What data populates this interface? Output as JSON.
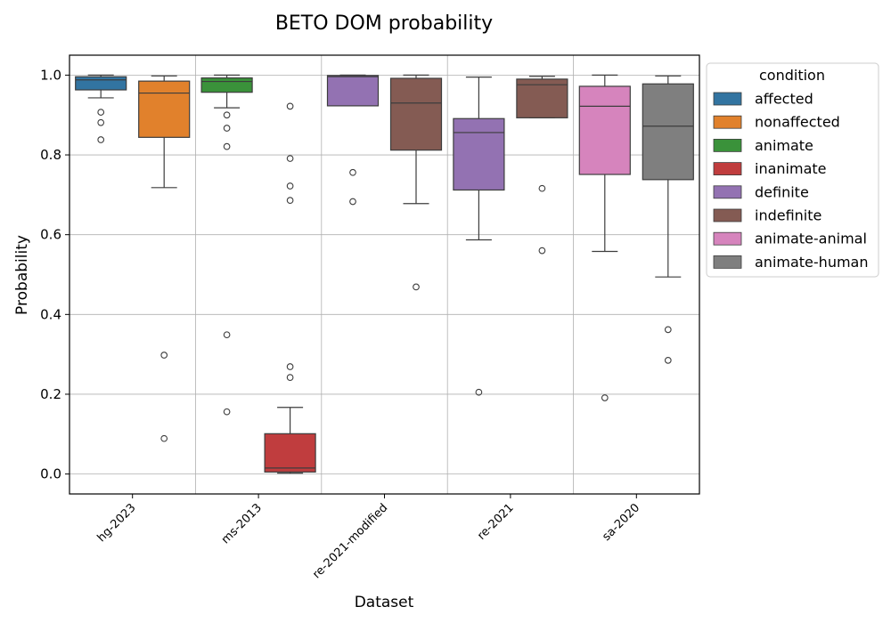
{
  "chart_data": {
    "type": "box",
    "title": "BETO DOM probability",
    "xlabel": "Dataset",
    "ylabel": "Probability",
    "ylim": [
      -0.05,
      1.05
    ],
    "yticks": [
      "0.0",
      "0.2",
      "0.4",
      "0.6",
      "0.8",
      "1.0"
    ],
    "categories": [
      "hg-2023",
      "ms-2013",
      "re-2021-modified",
      "re-2021",
      "sa-2020"
    ],
    "grid": true,
    "legend": {
      "title": "condition",
      "placement": "outside-right",
      "entries": [
        {
          "name": "affected",
          "color": "#3274a1"
        },
        {
          "name": "nonaffected",
          "color": "#e1812c"
        },
        {
          "name": "animate",
          "color": "#3a923a"
        },
        {
          "name": "inanimate",
          "color": "#c03d3e"
        },
        {
          "name": "definite",
          "color": "#9372b2"
        },
        {
          "name": "indefinite",
          "color": "#845b53"
        },
        {
          "name": "animate-animal",
          "color": "#d684bd"
        },
        {
          "name": "animate-human",
          "color": "#7f7f7f"
        }
      ]
    },
    "boxes": [
      {
        "category": "hg-2023",
        "condition": "affected",
        "color": "#3274a1",
        "slot": 0,
        "whisker_low": 0.943,
        "q1": 0.963,
        "median": 0.988,
        "q3": 0.996,
        "whisker_high": 1.0,
        "outliers": [
          0.907,
          0.881,
          0.838
        ]
      },
      {
        "category": "hg-2023",
        "condition": "nonaffected",
        "color": "#e1812c",
        "slot": 1,
        "whisker_low": 0.718,
        "q1": 0.844,
        "median": 0.955,
        "q3": 0.985,
        "whisker_high": 0.998,
        "outliers": [
          0.298,
          0.089
        ]
      },
      {
        "category": "ms-2013",
        "condition": "animate",
        "color": "#3a923a",
        "slot": 0,
        "whisker_low": 0.918,
        "q1": 0.957,
        "median": 0.984,
        "q3": 0.993,
        "whisker_high": 1.0,
        "outliers": [
          0.9,
          0.867,
          0.821,
          0.349,
          0.156
        ]
      },
      {
        "category": "ms-2013",
        "condition": "inanimate",
        "color": "#c03d3e",
        "slot": 1,
        "whisker_low": 0.002,
        "q1": 0.005,
        "median": 0.015,
        "q3": 0.101,
        "whisker_high": 0.167,
        "outliers": [
          0.922,
          0.791,
          0.722,
          0.686,
          0.269,
          0.242
        ]
      },
      {
        "category": "re-2021-modified",
        "condition": "definite",
        "color": "#9372b2",
        "slot": 0,
        "whisker_low": 0.923,
        "q1": 0.923,
        "median": 0.996,
        "q3": 0.999,
        "whisker_high": 1.0,
        "outliers": [
          0.756,
          0.683
        ]
      },
      {
        "category": "re-2021-modified",
        "condition": "indefinite",
        "color": "#845b53",
        "slot": 1,
        "whisker_low": 0.678,
        "q1": 0.812,
        "median": 0.93,
        "q3": 0.992,
        "whisker_high": 1.0,
        "outliers": [
          0.469
        ]
      },
      {
        "category": "re-2021",
        "condition": "definite",
        "color": "#9372b2",
        "slot": 0,
        "whisker_low": 0.587,
        "q1": 0.712,
        "median": 0.856,
        "q3": 0.891,
        "whisker_high": 0.995,
        "outliers": [
          0.205
        ]
      },
      {
        "category": "re-2021",
        "condition": "indefinite",
        "color": "#845b53",
        "slot": 1,
        "whisker_low": 0.893,
        "q1": 0.893,
        "median": 0.976,
        "q3": 0.99,
        "whisker_high": 0.997,
        "outliers": [
          0.716,
          0.56
        ]
      },
      {
        "category": "sa-2020",
        "condition": "animate-animal",
        "color": "#d684bd",
        "slot": 0,
        "whisker_low": 0.558,
        "q1": 0.751,
        "median": 0.922,
        "q3": 0.972,
        "whisker_high": 1.0,
        "outliers": [
          0.191
        ]
      },
      {
        "category": "sa-2020",
        "condition": "animate-human",
        "color": "#7f7f7f",
        "slot": 1,
        "whisker_low": 0.494,
        "q1": 0.738,
        "median": 0.872,
        "q3": 0.978,
        "whisker_high": 0.998,
        "outliers": [
          0.362,
          0.285
        ]
      }
    ]
  }
}
